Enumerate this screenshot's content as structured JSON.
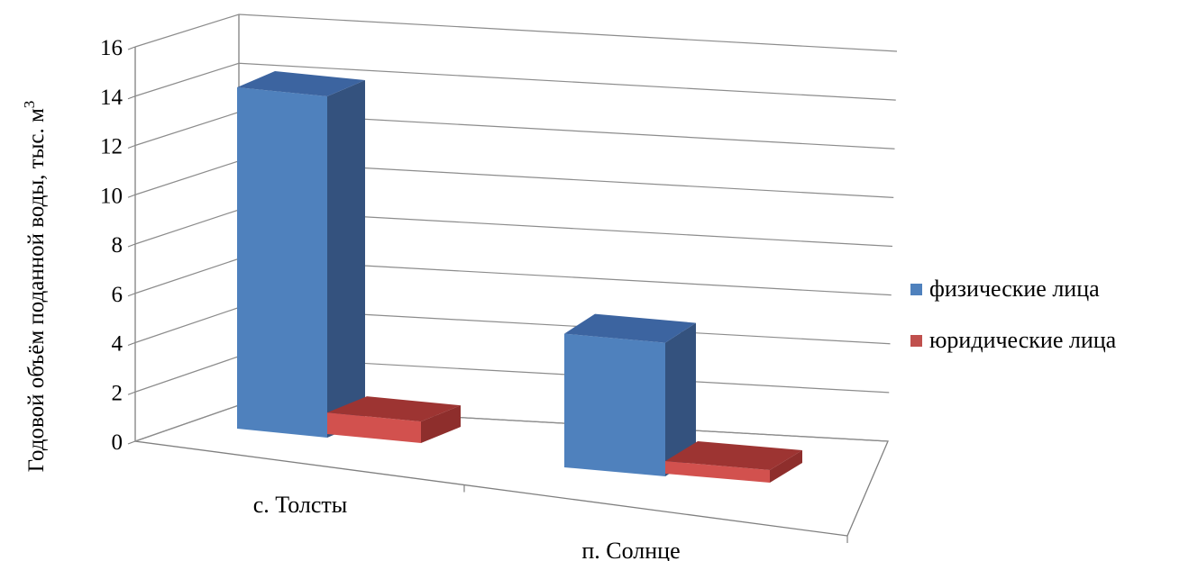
{
  "chart_data": {
    "type": "bar",
    "title": "",
    "ylabel": "Годовой объём поданной воды, тыс. м",
    "ylabel_superscript": "3",
    "xlabel": "",
    "ylim": [
      0,
      16
    ],
    "yticks": [
      "0",
      "2",
      "4",
      "6",
      "8",
      "10",
      "12",
      "14",
      "16"
    ],
    "categories": [
      "с. Толсты",
      "п. Солнце"
    ],
    "series": [
      {
        "name": "физические лица",
        "values": [
          14.3,
          5.6
        ],
        "color": "#4f81bd"
      },
      {
        "name": "юридические лица",
        "values": [
          0.9,
          0.5
        ],
        "color": "#c0504d"
      }
    ],
    "grid": true,
    "legend": "right",
    "render": "3d-column"
  }
}
